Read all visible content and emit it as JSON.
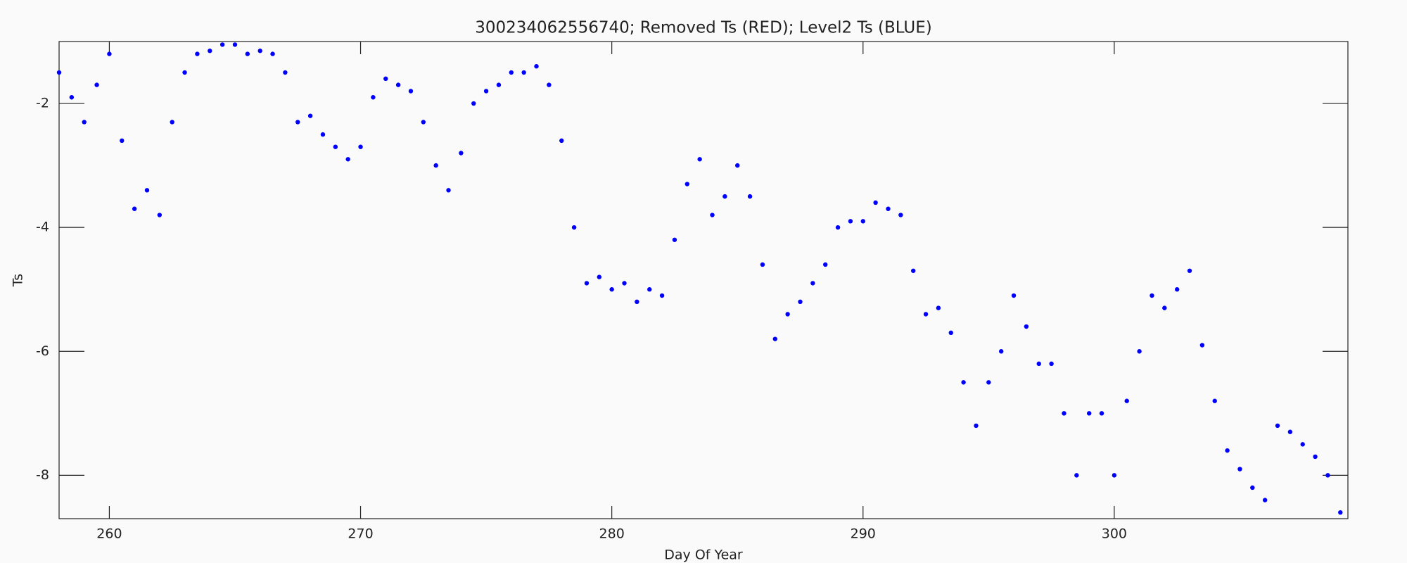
{
  "chart_data": {
    "type": "scatter",
    "title": "300234062556740; Removed Ts (RED); Level2 Ts (BLUE)",
    "x_label": "Day Of Year",
    "y_label": "Ts",
    "xlim": [
      258,
      309.3
    ],
    "ylim": [
      -8.7,
      -1.0
    ],
    "xticks": [
      260,
      270,
      280,
      290,
      300
    ],
    "yticks": [
      -2,
      -4,
      -6,
      -8
    ],
    "grid": false,
    "series": [
      {
        "name": "Level2 Ts",
        "color": "#0000ff",
        "x": [
          258,
          258.5,
          259,
          259.5,
          260,
          260.5,
          261,
          261.5,
          262,
          262.5,
          263,
          263.5,
          264,
          264.5,
          265,
          265.5,
          266,
          266.5,
          267,
          267.5,
          268,
          268.5,
          269,
          269.5,
          270,
          270.5,
          271,
          271.5,
          272,
          272.5,
          273,
          273.5,
          274,
          274.5,
          275,
          275.5,
          276,
          276.5,
          277,
          277.5,
          278,
          278.5,
          279,
          279.5,
          280,
          280.5,
          281,
          281.5,
          282,
          282.5,
          283,
          283.5,
          284,
          284.5,
          285,
          285.5,
          286,
          286.5,
          287,
          287.5,
          288,
          288.5,
          289,
          289.5,
          290,
          290.5,
          291,
          291.5,
          292,
          292.5,
          293,
          293.5,
          294,
          294.5,
          295,
          295.5,
          296,
          296.5,
          297,
          297.5,
          298,
          298.5,
          299,
          299.5,
          300,
          300.5,
          301,
          301.5,
          302,
          302.5,
          303,
          303.5,
          304,
          304.5,
          305,
          305.5,
          306,
          306.5,
          307,
          307.5,
          308,
          308.5,
          309
        ],
        "values": [
          -1.5,
          -1.9,
          -2.3,
          -1.7,
          -1.2,
          -2.6,
          -3.7,
          -3.4,
          -3.8,
          -2.3,
          -1.5,
          -1.2,
          -1.15,
          -1.05,
          -1.05,
          -1.2,
          -1.15,
          -1.2,
          -1.5,
          -2.3,
          -2.2,
          -2.5,
          -2.7,
          -2.9,
          -2.7,
          -1.9,
          -1.6,
          -1.7,
          -1.8,
          -2.3,
          -3.0,
          -3.4,
          -2.8,
          -2.0,
          -1.8,
          -1.7,
          -1.5,
          -1.5,
          -1.4,
          -1.7,
          -2.6,
          -4.0,
          -4.9,
          -4.8,
          -5.0,
          -4.9,
          -5.2,
          -5.0,
          -5.1,
          -4.2,
          -3.3,
          -2.9,
          -3.8,
          -3.5,
          -3.0,
          -3.5,
          -4.6,
          -5.8,
          -5.4,
          -5.2,
          -4.9,
          -4.6,
          -4.0,
          -3.9,
          -3.9,
          -3.6,
          -3.7,
          -3.8,
          -4.7,
          -5.4,
          -5.3,
          -5.7,
          -6.5,
          -7.2,
          -6.5,
          -6.0,
          -5.1,
          -5.6,
          -6.2,
          -6.2,
          -7.0,
          -8.0,
          -7.0,
          -7.0,
          -8.0,
          -6.8,
          -6.0,
          -5.1,
          -5.3,
          -5.0,
          -4.7,
          -5.9,
          -6.8,
          -7.6,
          -7.9,
          -8.2,
          -8.4,
          -7.2,
          -7.3,
          -7.5,
          -7.7,
          -8.0,
          -8.6
        ]
      }
    ]
  }
}
